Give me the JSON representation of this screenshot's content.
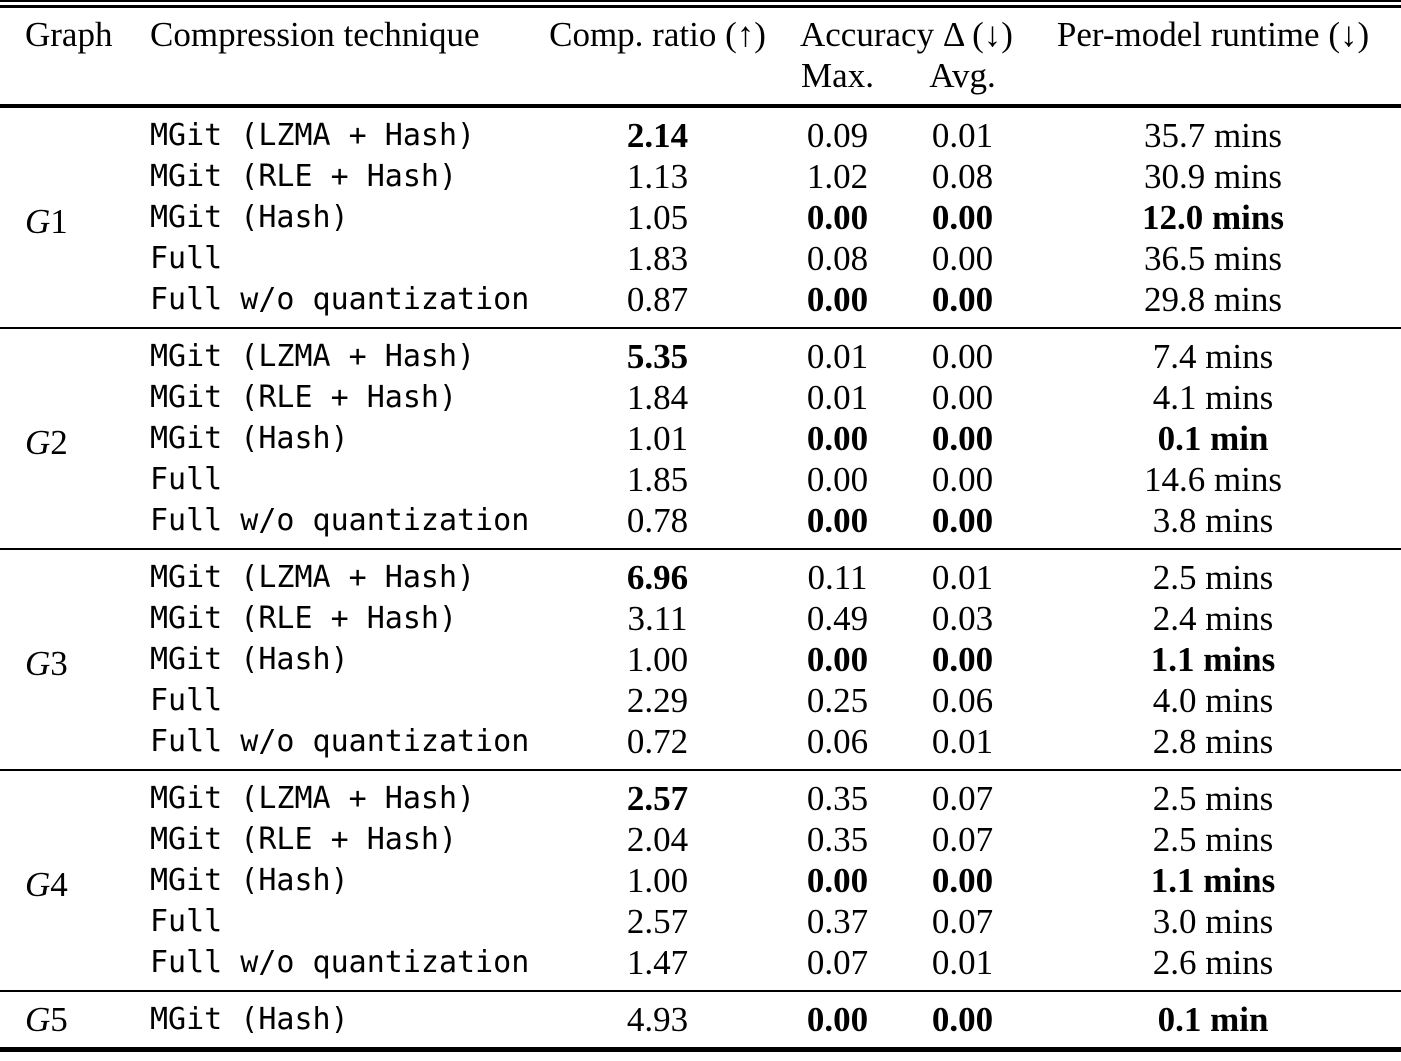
{
  "header": {
    "graph": "Graph",
    "technique": "Compression technique",
    "comp_ratio": "Comp. ratio (↑)",
    "accuracy": "Accuracy Δ (↓)",
    "accuracy_max": "Max.",
    "accuracy_avg": "Avg.",
    "runtime": "Per-model runtime (↓)"
  },
  "groups": [
    {
      "graph": "G1",
      "rows": [
        {
          "technique": "MGit (LZMA + Hash)",
          "ratio": "2.14",
          "ratio_bold": true,
          "max": "0.09",
          "max_bold": false,
          "avg": "0.01",
          "avg_bold": false,
          "runtime": "35.7 mins",
          "runtime_bold": false
        },
        {
          "technique": "MGit (RLE + Hash)",
          "ratio": "1.13",
          "ratio_bold": false,
          "max": "1.02",
          "max_bold": false,
          "avg": "0.08",
          "avg_bold": false,
          "runtime": "30.9 mins",
          "runtime_bold": false
        },
        {
          "technique": "MGit (Hash)",
          "ratio": "1.05",
          "ratio_bold": false,
          "max": "0.00",
          "max_bold": true,
          "avg": "0.00",
          "avg_bold": true,
          "runtime": "12.0 mins",
          "runtime_bold": true
        },
        {
          "technique": "Full",
          "ratio": "1.83",
          "ratio_bold": false,
          "max": "0.08",
          "max_bold": false,
          "avg": "0.00",
          "avg_bold": false,
          "runtime": "36.5 mins",
          "runtime_bold": false
        },
        {
          "technique": "Full w/o quantization",
          "ratio": "0.87",
          "ratio_bold": false,
          "max": "0.00",
          "max_bold": true,
          "avg": "0.00",
          "avg_bold": true,
          "runtime": "29.8 mins",
          "runtime_bold": false
        }
      ]
    },
    {
      "graph": "G2",
      "rows": [
        {
          "technique": "MGit (LZMA + Hash)",
          "ratio": "5.35",
          "ratio_bold": true,
          "max": "0.01",
          "max_bold": false,
          "avg": "0.00",
          "avg_bold": false,
          "runtime": "7.4 mins",
          "runtime_bold": false
        },
        {
          "technique": "MGit (RLE + Hash)",
          "ratio": "1.84",
          "ratio_bold": false,
          "max": "0.01",
          "max_bold": false,
          "avg": "0.00",
          "avg_bold": false,
          "runtime": "4.1 mins",
          "runtime_bold": false
        },
        {
          "technique": "MGit (Hash)",
          "ratio": "1.01",
          "ratio_bold": false,
          "max": "0.00",
          "max_bold": true,
          "avg": "0.00",
          "avg_bold": true,
          "runtime": "0.1 min",
          "runtime_bold": true
        },
        {
          "technique": "Full",
          "ratio": "1.85",
          "ratio_bold": false,
          "max": "0.00",
          "max_bold": false,
          "avg": "0.00",
          "avg_bold": false,
          "runtime": "14.6 mins",
          "runtime_bold": false
        },
        {
          "technique": "Full w/o quantization",
          "ratio": "0.78",
          "ratio_bold": false,
          "max": "0.00",
          "max_bold": true,
          "avg": "0.00",
          "avg_bold": true,
          "runtime": "3.8 mins",
          "runtime_bold": false
        }
      ]
    },
    {
      "graph": "G3",
      "rows": [
        {
          "technique": "MGit (LZMA + Hash)",
          "ratio": "6.96",
          "ratio_bold": true,
          "max": "0.11",
          "max_bold": false,
          "avg": "0.01",
          "avg_bold": false,
          "runtime": "2.5 mins",
          "runtime_bold": false
        },
        {
          "technique": "MGit (RLE + Hash)",
          "ratio": "3.11",
          "ratio_bold": false,
          "max": "0.49",
          "max_bold": false,
          "avg": "0.03",
          "avg_bold": false,
          "runtime": "2.4 mins",
          "runtime_bold": false
        },
        {
          "technique": "MGit (Hash)",
          "ratio": "1.00",
          "ratio_bold": false,
          "max": "0.00",
          "max_bold": true,
          "avg": "0.00",
          "avg_bold": true,
          "runtime": "1.1 mins",
          "runtime_bold": true
        },
        {
          "technique": "Full",
          "ratio": "2.29",
          "ratio_bold": false,
          "max": "0.25",
          "max_bold": false,
          "avg": "0.06",
          "avg_bold": false,
          "runtime": "4.0 mins",
          "runtime_bold": false
        },
        {
          "technique": "Full w/o quantization",
          "ratio": "0.72",
          "ratio_bold": false,
          "max": "0.06",
          "max_bold": false,
          "avg": "0.01",
          "avg_bold": false,
          "runtime": "2.8 mins",
          "runtime_bold": false
        }
      ]
    },
    {
      "graph": "G4",
      "rows": [
        {
          "technique": "MGit (LZMA + Hash)",
          "ratio": "2.57",
          "ratio_bold": true,
          "max": "0.35",
          "max_bold": false,
          "avg": "0.07",
          "avg_bold": false,
          "runtime": "2.5 mins",
          "runtime_bold": false
        },
        {
          "technique": "MGit (RLE + Hash)",
          "ratio": "2.04",
          "ratio_bold": false,
          "max": "0.35",
          "max_bold": false,
          "avg": "0.07",
          "avg_bold": false,
          "runtime": "2.5 mins",
          "runtime_bold": false
        },
        {
          "technique": "MGit (Hash)",
          "ratio": "1.00",
          "ratio_bold": false,
          "max": "0.00",
          "max_bold": true,
          "avg": "0.00",
          "avg_bold": true,
          "runtime": "1.1 mins",
          "runtime_bold": true
        },
        {
          "technique": "Full",
          "ratio": "2.57",
          "ratio_bold": false,
          "max": "0.37",
          "max_bold": false,
          "avg": "0.07",
          "avg_bold": false,
          "runtime": "3.0 mins",
          "runtime_bold": false
        },
        {
          "technique": "Full w/o quantization",
          "ratio": "1.47",
          "ratio_bold": false,
          "max": "0.07",
          "max_bold": false,
          "avg": "0.01",
          "avg_bold": false,
          "runtime": "2.6 mins",
          "runtime_bold": false
        }
      ]
    },
    {
      "graph": "G5",
      "rows": [
        {
          "technique": "MGit (Hash)",
          "ratio": "4.93",
          "ratio_bold": false,
          "max": "0.00",
          "max_bold": true,
          "avg": "0.00",
          "avg_bold": true,
          "runtime": "0.1 min",
          "runtime_bold": true
        }
      ]
    }
  ]
}
